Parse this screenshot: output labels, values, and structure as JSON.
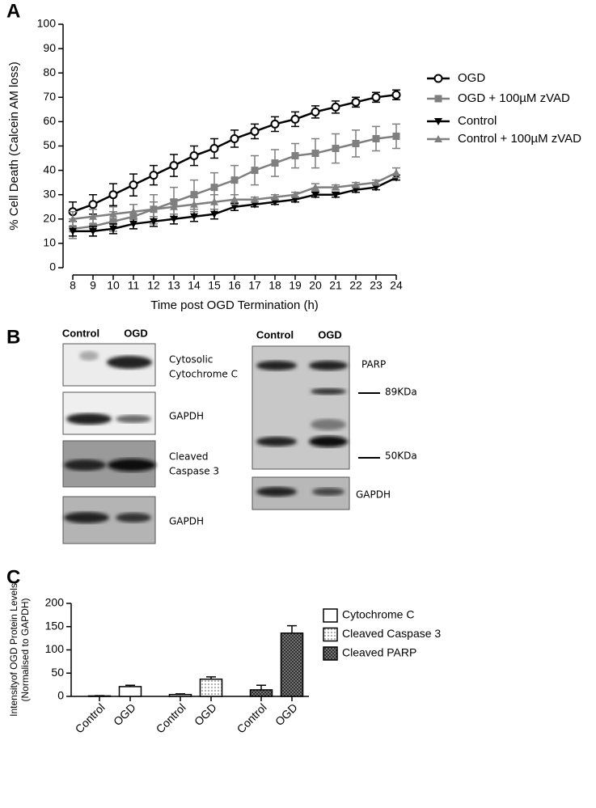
{
  "panel_labels": [
    "A",
    "B",
    "C"
  ],
  "chart_data": [
    {
      "type": "line",
      "xlabel": "Time post OGD Termination (h)",
      "ylabel": "% Cell Death (Calcein AM loss)",
      "x": [
        8,
        9,
        10,
        11,
        12,
        13,
        14,
        15,
        16,
        17,
        18,
        19,
        20,
        21,
        22,
        23,
        24
      ],
      "xlim": [
        8,
        24
      ],
      "xticks": [
        8,
        9,
        10,
        11,
        12,
        13,
        14,
        15,
        16,
        17,
        18,
        19,
        20,
        21,
        22,
        23,
        24
      ],
      "ylim": [
        0,
        100
      ],
      "yticks": [
        0,
        10,
        20,
        30,
        40,
        50,
        60,
        70,
        80,
        90,
        100
      ],
      "series": [
        {
          "name": "OGD",
          "color": "#000000",
          "marker": "circle-open",
          "values": [
            23,
            26,
            30,
            34,
            38,
            42,
            46,
            49,
            53,
            56,
            59,
            61,
            64,
            66,
            68,
            70,
            71
          ],
          "errors": [
            4,
            4,
            4.5,
            4.5,
            4,
            4.5,
            4,
            4,
            3.5,
            3,
            3,
            3,
            2.5,
            2.5,
            2,
            2,
            2
          ]
        },
        {
          "name": "OGD + 100µM zVAD",
          "color": "#7f7f7f",
          "marker": "square",
          "values": [
            16,
            17,
            19,
            21,
            24,
            27,
            30,
            33,
            36,
            40,
            43,
            46,
            47,
            49,
            51,
            53,
            54
          ],
          "errors": [
            4,
            4,
            4,
            5,
            6,
            6,
            6,
            6,
            6,
            6,
            5.5,
            5,
            6,
            6,
            5.5,
            5,
            5
          ]
        },
        {
          "name": "Control",
          "color": "#000000",
          "marker": "triangle-down",
          "values": [
            15,
            15,
            16,
            18,
            19,
            20,
            21,
            22,
            25,
            26,
            27,
            28,
            30,
            30,
            32,
            33,
            37
          ],
          "errors": [
            2,
            2,
            2,
            2,
            2,
            2,
            2,
            2,
            1.5,
            1,
            1,
            1,
            1,
            1,
            1,
            1,
            1
          ]
        },
        {
          "name": "Control + 100µM zVAD",
          "color": "#7f7f7f",
          "marker": "triangle-up",
          "values": [
            20,
            21,
            22,
            23,
            24,
            25,
            26,
            27,
            28,
            28,
            29,
            30,
            33,
            33,
            34,
            35,
            39
          ],
          "errors": [
            3,
            3,
            3,
            3,
            3,
            3,
            3,
            3,
            2,
            1,
            1,
            1,
            1.5,
            1,
            1,
            1,
            2
          ]
        }
      ]
    },
    {
      "type": "bar",
      "ylabel": [
        "Intensityof OGD Protein Levels",
        "(Normalised to GAPDH)"
      ],
      "categories": [
        "Control",
        "OGD",
        "Control",
        "OGD",
        "Control",
        "OGD"
      ],
      "ylim": [
        0,
        200
      ],
      "yticks": [
        0,
        50,
        100,
        150,
        200
      ],
      "series": [
        {
          "name": "Cytochrome C",
          "color": "#ffffff",
          "pattern": "none",
          "values": [
            1,
            21,
            null,
            null,
            null,
            null
          ],
          "errors": [
            0.5,
            3,
            null,
            null,
            null,
            null
          ]
        },
        {
          "name": "Cleaved Caspase 3",
          "color": "#ffffff",
          "pattern": "dots",
          "values": [
            null,
            null,
            4,
            37,
            null,
            null
          ],
          "errors": [
            null,
            null,
            1.5,
            5,
            null,
            null
          ]
        },
        {
          "name": "Cleaved PARP",
          "color": "#ffffff",
          "pattern": "crosshatch",
          "values": [
            null,
            null,
            null,
            null,
            14,
            136
          ],
          "errors": [
            null,
            null,
            null,
            null,
            10,
            16
          ]
        }
      ]
    }
  ],
  "blots": {
    "left": {
      "lanes": [
        "Control",
        "OGD"
      ],
      "labels": [
        "Cytosolic",
        "Cytochrome C",
        "GAPDH",
        "Cleaved",
        "Caspase 3",
        "GAPDH"
      ]
    },
    "right": {
      "lanes": [
        "Control",
        "OGD"
      ],
      "labels": [
        "PARP",
        "89KDa",
        "50KDa",
        "GAPDH"
      ]
    }
  }
}
